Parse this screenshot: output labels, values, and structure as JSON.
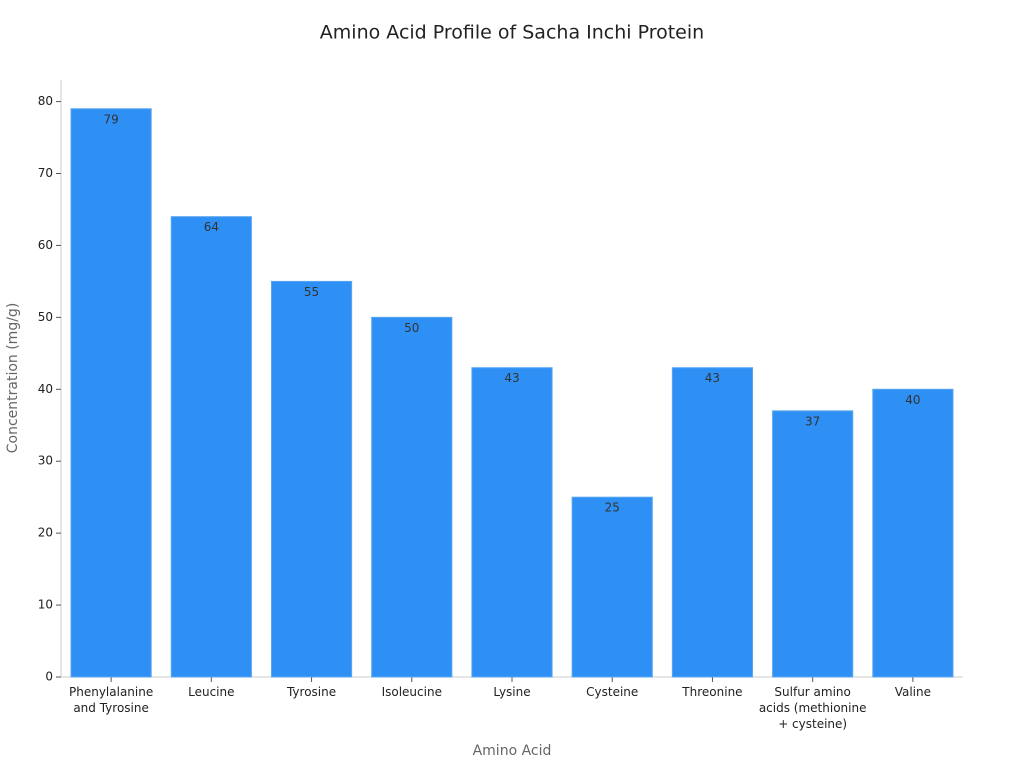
{
  "chart_data": {
    "type": "bar",
    "title": "Amino Acid Profile of Sacha Inchi Protein",
    "x_label": "Amino Acid",
    "y_label": "Concentration (mg/g)",
    "categories": [
      "Phenylalanine and Tyrosine",
      "Leucine",
      "Tyrosine",
      "Isoleucine",
      "Lysine",
      "Cysteine",
      "Threonine",
      "Sulfur amino acids (methionine + cysteine)",
      "Valine"
    ],
    "values": [
      79,
      64,
      55,
      50,
      43,
      25,
      43,
      37,
      40
    ],
    "color": "#2e90f5",
    "ylim": [
      0,
      83
    ],
    "yticks": [
      0,
      10,
      20,
      30,
      40,
      50,
      60,
      70,
      80
    ],
    "grid": false
  }
}
